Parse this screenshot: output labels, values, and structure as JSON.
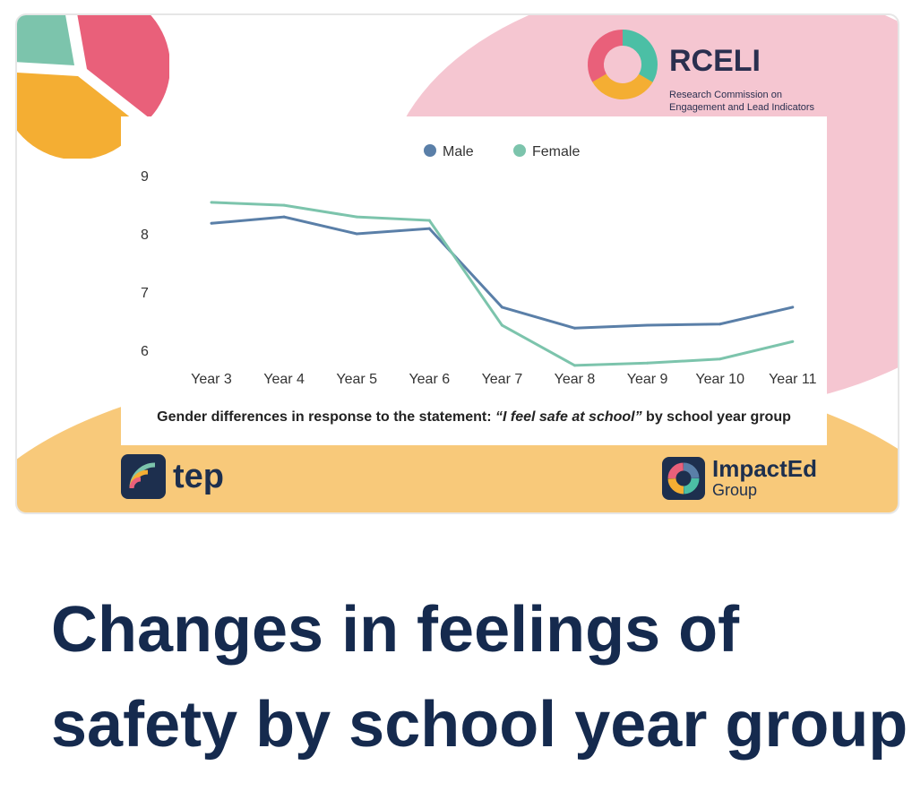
{
  "branding": {
    "rceli_title": "RCELI",
    "rceli_subtitle_1": "Research Commission on",
    "rceli_subtitle_2": "Engagement and Lead Indicators",
    "tep": "tep",
    "impacted": "ImpactEd",
    "impacted_sub": "Group"
  },
  "headline": {
    "line1": "Changes in feelings of",
    "line2": "safety by school year group"
  },
  "chart_data": {
    "type": "line",
    "caption_pre": "Gender differences in response to the statement: ",
    "caption_quote": "“I feel safe at school”",
    "caption_post": " by school year group",
    "categories": [
      "Year 3",
      "Year 4",
      "Year 5",
      "Year 6",
      "Year 7",
      "Year 8",
      "Year 9",
      "Year 10",
      "Year 11"
    ],
    "yticks": [
      6,
      7,
      8,
      9
    ],
    "ylim": [
      5.7,
      9
    ],
    "legend_position": "top-center",
    "series": [
      {
        "name": "Male",
        "color": "#5a7fa8",
        "values": [
          8.18,
          8.29,
          8.0,
          8.09,
          6.74,
          6.38,
          6.43,
          6.45,
          6.74
        ]
      },
      {
        "name": "Female",
        "color": "#7cc4ac",
        "values": [
          8.54,
          8.49,
          8.29,
          8.23,
          6.43,
          5.74,
          5.78,
          5.85,
          6.15
        ]
      }
    ]
  }
}
